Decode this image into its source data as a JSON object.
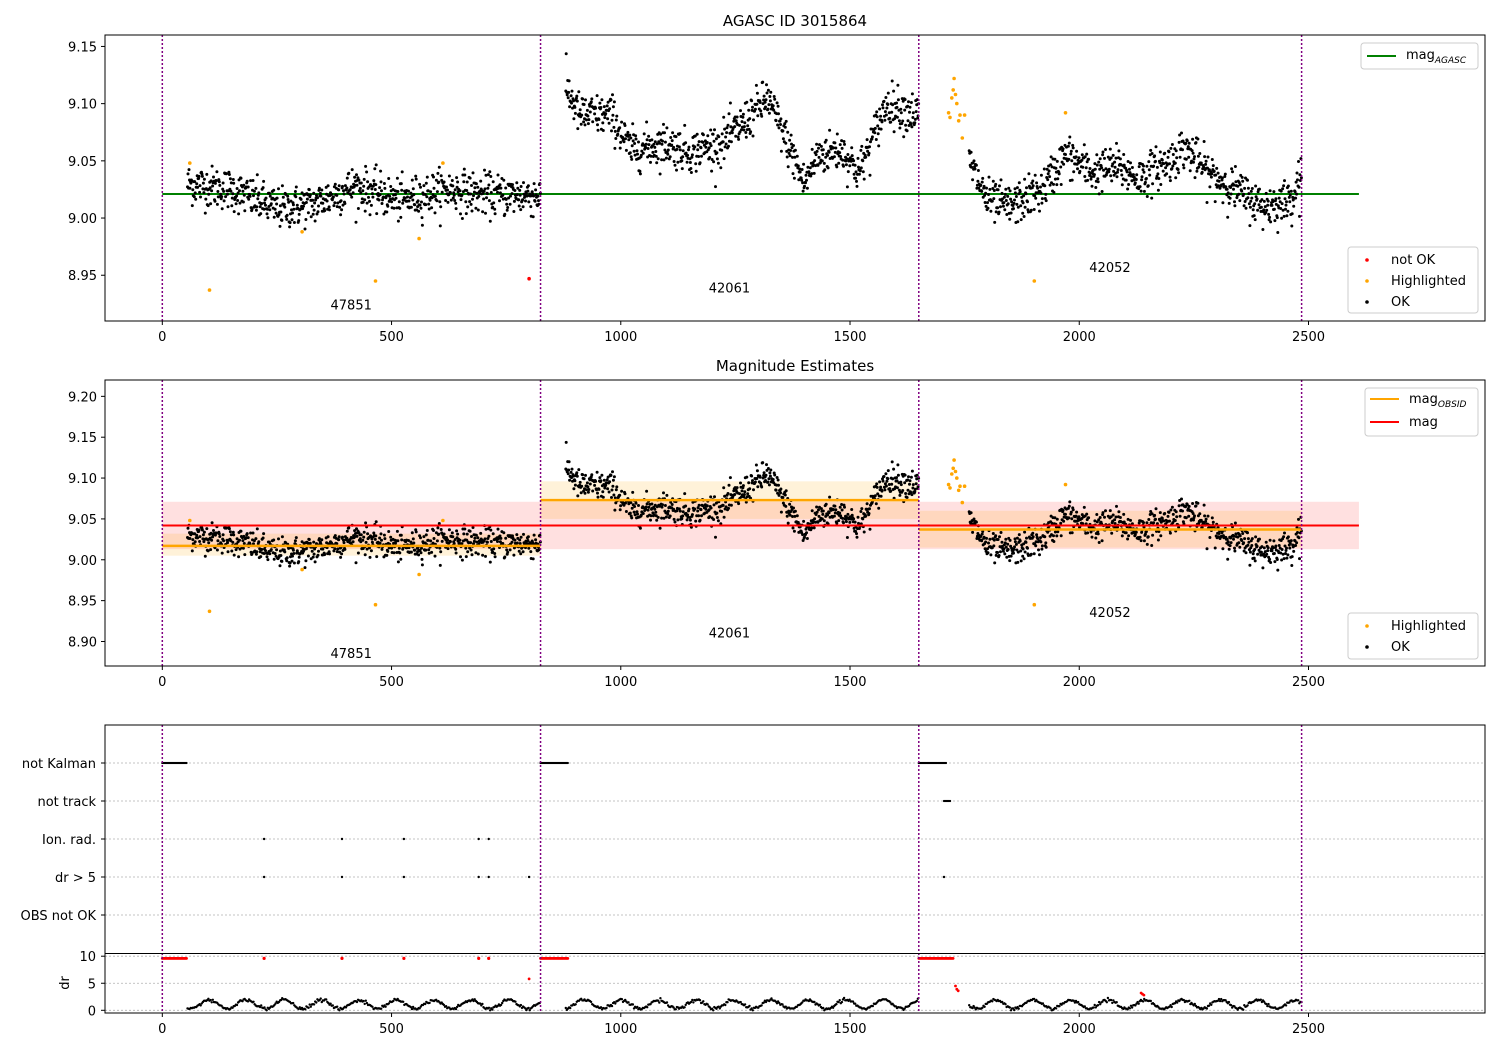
{
  "chart_data": [
    {
      "type": "scatter",
      "title": "AGASC ID 3015864",
      "xlim": [
        -125,
        2885
      ],
      "ylim": [
        8.91,
        9.16
      ],
      "xticks": [
        0,
        500,
        1000,
        1500,
        2000,
        2500
      ],
      "xtick_labels": [
        "0",
        "500",
        "1000",
        "1500",
        "2000",
        "2500"
      ],
      "yticks": [
        8.95,
        9.0,
        9.05,
        9.1,
        9.15
      ],
      "ytick_labels": [
        "8.95",
        "9.00",
        "9.05",
        "9.10",
        "9.15"
      ],
      "obsid_boundaries": [
        0,
        825,
        1650,
        2485
      ],
      "obsid_labels": [
        {
          "text": "47851",
          "x": 412,
          "y": 8.92
        },
        {
          "text": "42061",
          "x": 1237,
          "y": 8.935
        },
        {
          "text": "42052",
          "x": 2067,
          "y": 8.953
        }
      ],
      "agasc_line": {
        "value": 9.021,
        "x_range": [
          0,
          2610
        ],
        "color": "#008000"
      },
      "segments": [
        {
          "x_start": 55,
          "x_end": 825,
          "trend": [
            [
              55,
              9.03
            ],
            [
              150,
              9.025
            ],
            [
              250,
              9.008
            ],
            [
              330,
              9.012
            ],
            [
              420,
              9.028
            ],
            [
              520,
              9.015
            ],
            [
              620,
              9.025
            ],
            [
              720,
              9.02
            ],
            [
              825,
              9.02
            ]
          ],
          "noise": 0.009
        },
        {
          "x_start": 880,
          "x_end": 1650,
          "trend": [
            [
              880,
              9.115
            ],
            [
              910,
              9.09
            ],
            [
              980,
              9.09
            ],
            [
              1020,
              9.06
            ],
            [
              1100,
              9.065
            ],
            [
              1150,
              9.058
            ],
            [
              1220,
              9.065
            ],
            [
              1260,
              9.08
            ],
            [
              1320,
              9.105
            ],
            [
              1380,
              9.05
            ],
            [
              1400,
              9.03
            ],
            [
              1430,
              9.055
            ],
            [
              1480,
              9.06
            ],
            [
              1520,
              9.04
            ],
            [
              1580,
              9.1
            ],
            [
              1650,
              9.09
            ]
          ],
          "noise": 0.009
        },
        {
          "x_start": 1760,
          "x_end": 2485,
          "trend": [
            [
              1760,
              9.05
            ],
            [
              1800,
              9.015
            ],
            [
              1850,
              9.01
            ],
            [
              1920,
              9.025
            ],
            [
              1970,
              9.055
            ],
            [
              2030,
              9.04
            ],
            [
              2080,
              9.045
            ],
            [
              2130,
              9.035
            ],
            [
              2200,
              9.05
            ],
            [
              2230,
              9.062
            ],
            [
              2280,
              9.04
            ],
            [
              2400,
              9.01
            ],
            [
              2460,
              9.015
            ],
            [
              2485,
              9.04
            ]
          ],
          "noise": 0.009
        }
      ],
      "highlighted_points": [
        [
          60,
          9.048
        ],
        [
          103,
          8.937
        ],
        [
          305,
          8.988
        ],
        [
          465,
          8.945
        ],
        [
          560,
          8.982
        ],
        [
          612,
          9.048
        ],
        [
          1902,
          8.945
        ],
        [
          1970,
          9.092
        ],
        [
          1715,
          9.092
        ],
        [
          1718,
          9.088
        ],
        [
          1722,
          9.105
        ],
        [
          1725,
          9.112
        ],
        [
          1727,
          9.122
        ],
        [
          1730,
          9.108
        ],
        [
          1733,
          9.1
        ],
        [
          1737,
          9.085
        ],
        [
          1740,
          9.09
        ],
        [
          1745,
          9.07
        ],
        [
          1750,
          9.09
        ]
      ],
      "not_ok_points": [
        [
          800,
          8.947
        ]
      ],
      "legend_upper": [
        {
          "label": "mag",
          "subscript": "AGASC",
          "color": "#008000"
        }
      ],
      "legend_lower": [
        {
          "label": "not OK",
          "color": "#ff0000"
        },
        {
          "label": "Highlighted",
          "color": "#ffa500"
        },
        {
          "label": "OK",
          "color": "#000000"
        }
      ]
    },
    {
      "type": "scatter",
      "title": "Magnitude Estimates",
      "xlim": [
        -125,
        2885
      ],
      "ylim": [
        8.87,
        9.22
      ],
      "xticks": [
        0,
        500,
        1000,
        1500,
        2000,
        2500
      ],
      "xtick_labels": [
        "0",
        "500",
        "1000",
        "1500",
        "2000",
        "2500"
      ],
      "yticks": [
        8.9,
        8.95,
        9.0,
        9.05,
        9.1,
        9.15,
        9.2
      ],
      "ytick_labels": [
        "8.90",
        "8.95",
        "9.00",
        "9.05",
        "9.10",
        "9.15",
        "9.20"
      ],
      "obsid_boundaries": [
        0,
        825,
        1650,
        2485
      ],
      "obsid_labels": [
        {
          "text": "47851",
          "x": 412,
          "y": 8.88
        },
        {
          "text": "42061",
          "x": 1237,
          "y": 8.905
        },
        {
          "text": "42052",
          "x": 2067,
          "y": 8.93
        }
      ],
      "mag_line": {
        "value": 9.042,
        "band": [
          9.013,
          9.071
        ],
        "x_range": [
          0,
          2610
        ],
        "color": "#ff0000"
      },
      "mag_obsid": [
        {
          "x_range": [
            0,
            825
          ],
          "value": 9.017,
          "band": [
            9.005,
            9.032
          ]
        },
        {
          "x_range": [
            825,
            1650
          ],
          "value": 9.073,
          "band": [
            9.05,
            9.096
          ]
        },
        {
          "x_range": [
            1650,
            2485
          ],
          "value": 9.037,
          "band": [
            9.015,
            9.06
          ]
        }
      ],
      "highlighted_points": [
        [
          60,
          9.048
        ],
        [
          103,
          8.937
        ],
        [
          305,
          8.988
        ],
        [
          465,
          8.945
        ],
        [
          560,
          8.982
        ],
        [
          612,
          9.048
        ],
        [
          1902,
          8.945
        ],
        [
          1970,
          9.092
        ],
        [
          1715,
          9.092
        ],
        [
          1718,
          9.088
        ],
        [
          1722,
          9.105
        ],
        [
          1725,
          9.112
        ],
        [
          1727,
          9.122
        ],
        [
          1730,
          9.108
        ],
        [
          1733,
          9.1
        ],
        [
          1737,
          9.085
        ],
        [
          1740,
          9.09
        ],
        [
          1745,
          9.07
        ],
        [
          1750,
          9.09
        ]
      ],
      "legend_upper": [
        {
          "label": "mag",
          "subscript": "OBSID",
          "color": "#ffa500"
        },
        {
          "label": "mag",
          "subscript": "",
          "color": "#ff0000"
        }
      ],
      "legend_lower": [
        {
          "label": "Highlighted",
          "color": "#ffa500"
        },
        {
          "label": "OK",
          "color": "#000000"
        }
      ]
    },
    {
      "type": "scatter",
      "title": "",
      "flags": [
        "not Kalman",
        "not track",
        "Ion. rad.",
        "dr > 5",
        "OBS not OK"
      ],
      "flag_points": {
        "not Kalman": {
          "ranges": [
            [
              0,
              55
            ],
            [
              825,
              885
            ],
            [
              1650,
              1710
            ]
          ]
        },
        "not track": {
          "ranges": [
            [
              1705,
              1720
            ]
          ]
        },
        "Ion. rad.": {
          "points": [
            222,
            392,
            527,
            690,
            712
          ]
        },
        "dr > 5": {
          "points": [
            222,
            392,
            527,
            690,
            712,
            800,
            1705
          ]
        },
        "OBS not OK": {
          "points": []
        }
      },
      "dr_panel": {
        "ylabel": "dr",
        "ylim": [
          -0.5,
          10.5
        ],
        "yticks": [
          0,
          5,
          10
        ],
        "ytick_labels": [
          "0",
          "5",
          "10"
        ],
        "red_high_ranges": [
          [
            0,
            55
          ],
          [
            825,
            885
          ],
          [
            1650,
            1725
          ]
        ],
        "red_high_points": [
          222,
          392,
          527,
          690,
          712
        ],
        "red_points": [
          [
            800,
            5.8
          ],
          [
            1730,
            4.5
          ],
          [
            1733,
            3.9
          ],
          [
            1736,
            3.6
          ],
          [
            2135,
            3.2
          ],
          [
            2138,
            3.0
          ],
          [
            2141,
            2.8
          ]
        ]
      },
      "obsid_boundaries": [
        0,
        825,
        1650,
        2485
      ],
      "xticks": [
        0,
        500,
        1000,
        1500,
        2000,
        2500
      ],
      "xtick_labels": [
        "0",
        "500",
        "1000",
        "1500",
        "2000",
        "2500"
      ]
    }
  ]
}
